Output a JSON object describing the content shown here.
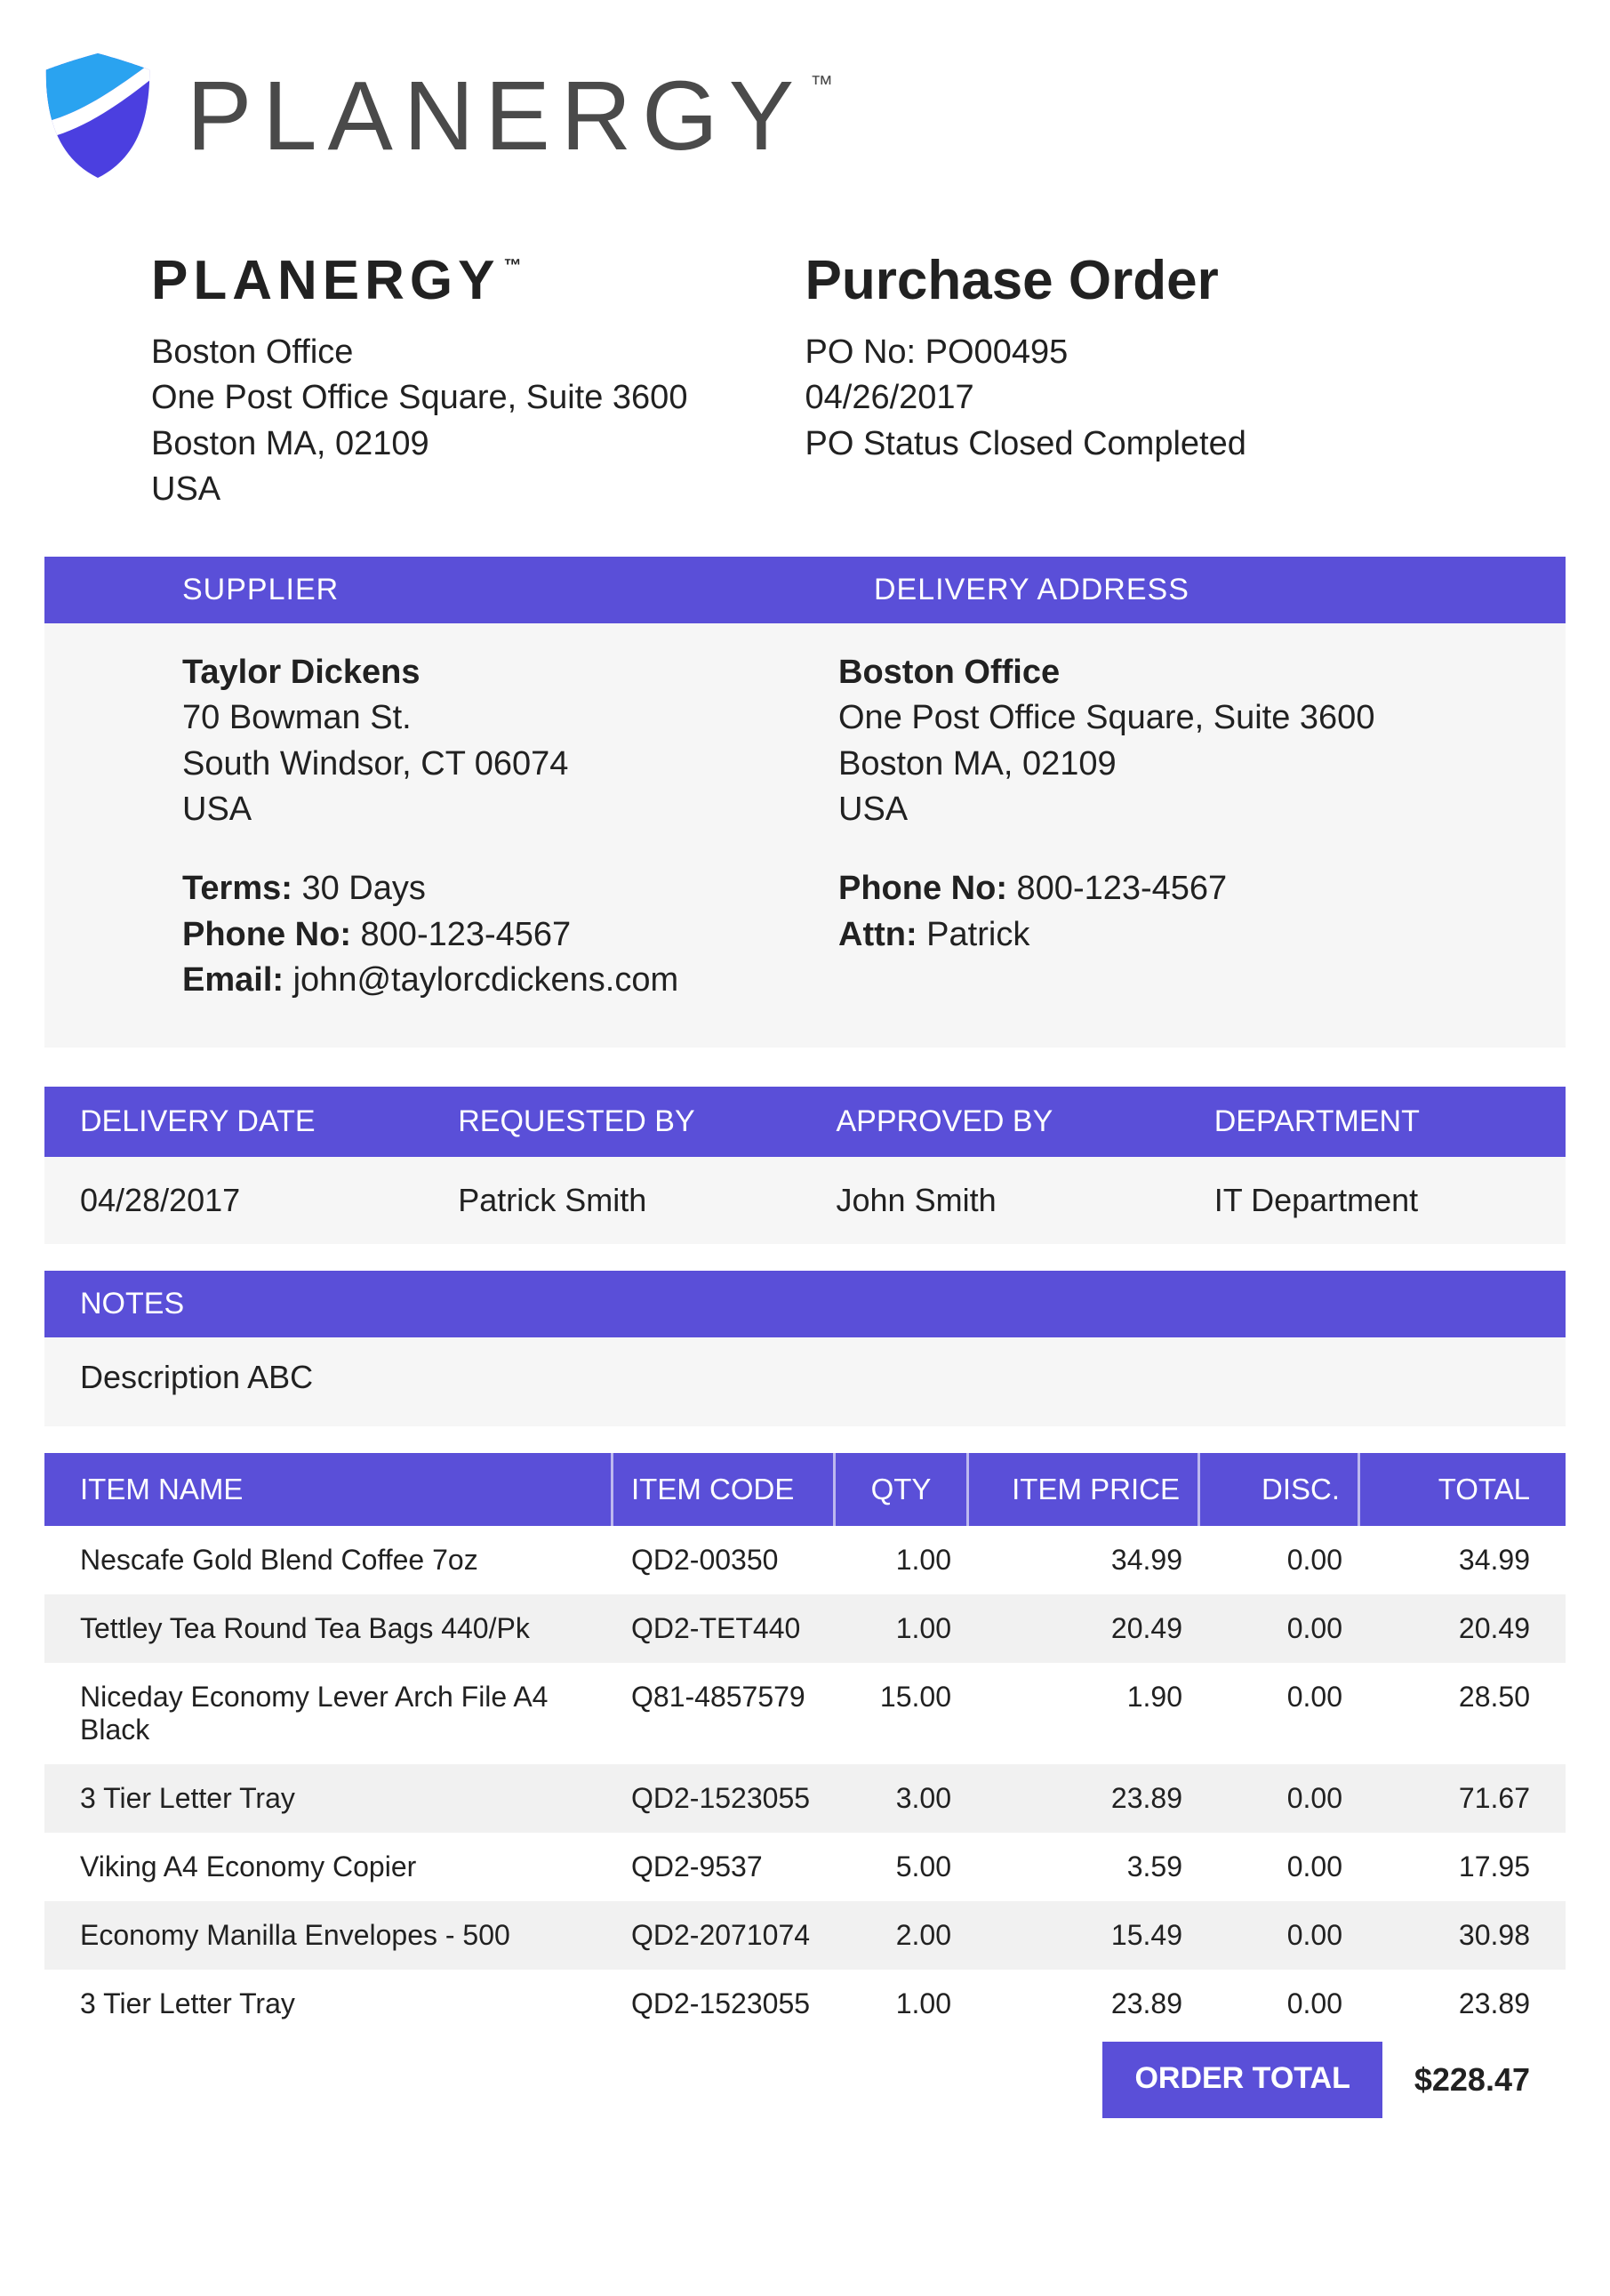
{
  "brand": {
    "word": "PLANERGY",
    "tm": "™",
    "shield_colors": {
      "top": "#2aa3f0",
      "bottom": "#4b3fe0"
    },
    "word_color": "#4a4a4a"
  },
  "colors": {
    "accent": "#5a4fd8",
    "gray_bg": "#f6f6f6",
    "row_alt": "#f1f1f1",
    "text": "#212121"
  },
  "company": {
    "name": "PLANERGY",
    "tm": "™",
    "office": "Boston Office",
    "street": "One Post Office Square, Suite 3600",
    "city": "Boston MA, 02109",
    "country": "USA"
  },
  "po": {
    "title": "Purchase Order",
    "number_label": "PO No: PO00495",
    "date": "04/26/2017",
    "status": "PO Status Closed Completed"
  },
  "section_headers": {
    "supplier": "SUPPLIER",
    "delivery_address": "DELIVERY ADDRESS",
    "notes": "NOTES"
  },
  "supplier": {
    "name": "Taylor Dickens",
    "street": "70 Bowman St.",
    "city": "South Windsor, CT 06074",
    "country": "USA",
    "terms_label": "Terms:",
    "terms_value": " 30 Days",
    "phone_label": "Phone No:",
    "phone_value": " 800-123-4567",
    "email_label": "Email:",
    "email_value": " john@taylorcdickens.com"
  },
  "delivery": {
    "office": "Boston Office",
    "street": "One Post Office Square, Suite 3600",
    "city": "Boston MA, 02109",
    "country": "USA",
    "phone_label": "Phone No:",
    "phone_value": " 800-123-4567",
    "attn_label": "Attn:",
    "attn_value": " Patrick"
  },
  "meta": {
    "headers": {
      "delivery_date": "DELIVERY DATE",
      "requested_by": "REQUESTED BY",
      "approved_by": "APPROVED BY",
      "department": "DEPARTMENT"
    },
    "values": {
      "delivery_date": "04/28/2017",
      "requested_by": "Patrick Smith",
      "approved_by": "John Smith",
      "department": "IT Department"
    }
  },
  "notes": "Description ABC",
  "items": {
    "headers": {
      "name": "ITEM NAME",
      "code": "ITEM CODE",
      "qty": "QTY",
      "price": "ITEM PRICE",
      "disc": "DISC.",
      "total": "TOTAL"
    },
    "rows": [
      {
        "name": "Nescafe Gold Blend Coffee 7oz",
        "code": "QD2-00350",
        "qty": "1.00",
        "price": "34.99",
        "disc": "0.00",
        "total": "34.99"
      },
      {
        "name": "Tettley Tea Round Tea Bags 440/Pk",
        "code": "QD2-TET440",
        "qty": "1.00",
        "price": "20.49",
        "disc": "0.00",
        "total": "20.49"
      },
      {
        "name": "Niceday Economy Lever Arch File A4 Black",
        "code": "Q81-4857579",
        "qty": "15.00",
        "price": "1.90",
        "disc": "0.00",
        "total": "28.50"
      },
      {
        "name": "3 Tier Letter Tray",
        "code": "QD2-1523055",
        "qty": "3.00",
        "price": "23.89",
        "disc": "0.00",
        "total": "71.67"
      },
      {
        "name": "Viking A4 Economy Copier",
        "code": "QD2-9537",
        "qty": "5.00",
        "price": "3.59",
        "disc": "0.00",
        "total": "17.95"
      },
      {
        "name": "Economy Manilla Envelopes - 500",
        "code": "QD2-2071074",
        "qty": "2.00",
        "price": "15.49",
        "disc": "0.00",
        "total": "30.98"
      },
      {
        "name": "3 Tier Letter Tray",
        "code": "QD2-1523055",
        "qty": "1.00",
        "price": "23.89",
        "disc": "0.00",
        "total": "23.89"
      }
    ]
  },
  "order_total": {
    "label": "ORDER TOTAL",
    "value": "$228.47"
  }
}
